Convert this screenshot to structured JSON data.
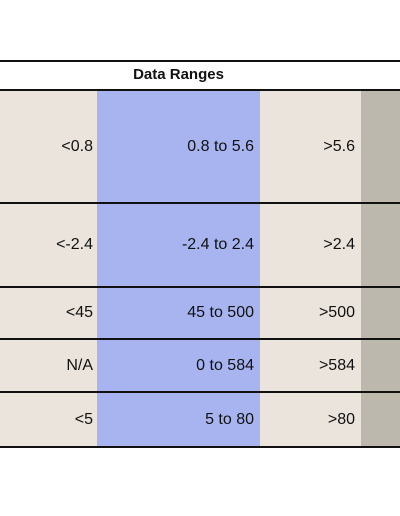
{
  "table": {
    "title": "Data Ranges",
    "rows": [
      {
        "low": "<0.8",
        "mid": "0.8 to 5.6",
        "high": ">5.6"
      },
      {
        "low": "<-2.4",
        "mid": "-2.4 to 2.4",
        "high": ">2.4"
      },
      {
        "low": "<45",
        "mid": "45 to 500",
        "high": ">500"
      },
      {
        "low": "N/A",
        "mid": "0 to 584",
        "high": ">584"
      },
      {
        "low": "<5",
        "mid": "5  to 80",
        "high": ">80"
      }
    ]
  },
  "colors": {
    "range_low_high_fill": "#ebe4dc",
    "range_mid_fill": "#a7b4f0",
    "side_column_fill": "#bdb8ae",
    "border": "#111111"
  }
}
